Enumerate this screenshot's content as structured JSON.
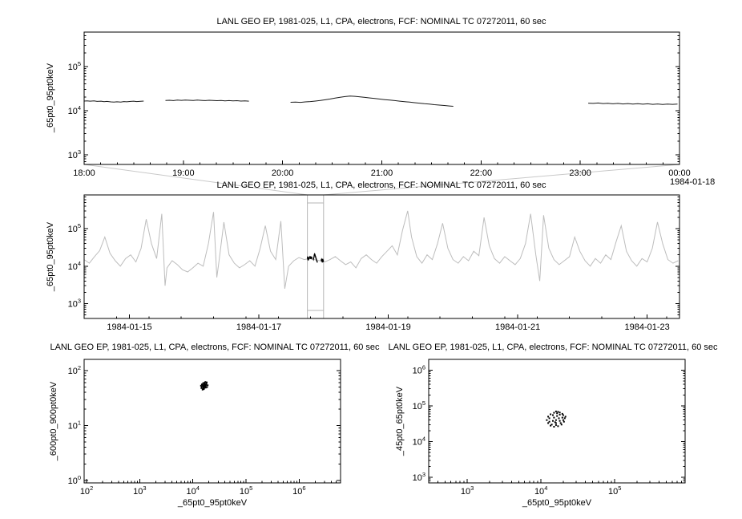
{
  "window": {
    "background": "#ffffff",
    "text_color": "#000000"
  },
  "chart_data": [
    {
      "id": "zoom",
      "type": "line",
      "title": "LANL GEO EP, 1981-025, L1, CPA, electrons, FCF: NOMINAL TC 07272011, 60 sec",
      "ylabel": "_65pt0_95pt0keV",
      "xlabel": "",
      "line_color": "#1a1a1a",
      "x_axis": {
        "lim": [
          18,
          24
        ],
        "log": false,
        "minor_step": 0.1666667,
        "date_label": "1984-01-18",
        "ticks": [
          {
            "v": 18,
            "label": "18:00"
          },
          {
            "v": 19,
            "label": "19:00"
          },
          {
            "v": 20,
            "label": "20:00"
          },
          {
            "v": 21,
            "label": "21:00"
          },
          {
            "v": 22,
            "label": "22:00"
          },
          {
            "v": 23,
            "label": "23:00"
          },
          {
            "v": 24,
            "label": "00:00"
          }
        ]
      },
      "y_axis": {
        "lim": [
          600,
          600000
        ],
        "log": true
      },
      "segments": [
        [
          [
            18.0,
            16400
          ],
          [
            18.03,
            16600
          ],
          [
            18.06,
            16300
          ],
          [
            18.1,
            16500
          ],
          [
            18.13,
            16100
          ],
          [
            18.17,
            16300
          ],
          [
            18.2,
            15900
          ],
          [
            18.23,
            16100
          ],
          [
            18.27,
            15700
          ],
          [
            18.3,
            15500
          ],
          [
            18.33,
            15800
          ],
          [
            18.37,
            15600
          ],
          [
            18.4,
            16000
          ],
          [
            18.43,
            15800
          ],
          [
            18.47,
            16100
          ],
          [
            18.5,
            16300
          ],
          [
            18.53,
            16000
          ],
          [
            18.57,
            16200
          ],
          [
            18.6,
            16400
          ]
        ],
        [
          [
            18.82,
            16900
          ],
          [
            18.86,
            17100
          ],
          [
            18.9,
            16800
          ],
          [
            18.94,
            17200
          ],
          [
            18.98,
            17000
          ],
          [
            19.02,
            17300
          ],
          [
            19.06,
            17100
          ],
          [
            19.1,
            16900
          ],
          [
            19.14,
            17200
          ],
          [
            19.18,
            17000
          ],
          [
            19.22,
            16800
          ],
          [
            19.26,
            17100
          ],
          [
            19.3,
            16900
          ],
          [
            19.34,
            16700
          ],
          [
            19.38,
            16900
          ],
          [
            19.42,
            16600
          ],
          [
            19.46,
            16800
          ],
          [
            19.5,
            16500
          ],
          [
            19.54,
            16700
          ],
          [
            19.58,
            16400
          ],
          [
            19.62,
            16600
          ],
          [
            19.66,
            16300
          ]
        ],
        [
          [
            20.08,
            15400
          ],
          [
            20.13,
            15600
          ],
          [
            20.18,
            15300
          ],
          [
            20.23,
            15700
          ],
          [
            20.28,
            16000
          ],
          [
            20.33,
            16400
          ],
          [
            20.38,
            16900
          ],
          [
            20.43,
            17500
          ],
          [
            20.48,
            18300
          ],
          [
            20.53,
            19200
          ],
          [
            20.58,
            20000
          ],
          [
            20.63,
            20700
          ],
          [
            20.68,
            21200
          ],
          [
            20.73,
            21000
          ],
          [
            20.78,
            20500
          ],
          [
            20.83,
            19900
          ],
          [
            20.88,
            19300
          ],
          [
            20.93,
            18700
          ],
          [
            20.98,
            18200
          ],
          [
            21.03,
            17700
          ],
          [
            21.08,
            17200
          ],
          [
            21.13,
            16800
          ],
          [
            21.18,
            16300
          ],
          [
            21.23,
            15900
          ],
          [
            21.28,
            15500
          ],
          [
            21.33,
            15100
          ],
          [
            21.38,
            14700
          ],
          [
            21.43,
            14300
          ],
          [
            21.48,
            14000
          ],
          [
            21.53,
            13600
          ],
          [
            21.58,
            13300
          ],
          [
            21.63,
            13000
          ],
          [
            21.68,
            12700
          ],
          [
            21.72,
            12500
          ]
        ],
        [
          [
            23.08,
            14700
          ],
          [
            23.13,
            14500
          ],
          [
            23.18,
            14800
          ],
          [
            23.23,
            14400
          ],
          [
            23.28,
            14600
          ],
          [
            23.33,
            14200
          ],
          [
            23.38,
            14500
          ],
          [
            23.43,
            14100
          ],
          [
            23.48,
            14400
          ],
          [
            23.53,
            14000
          ],
          [
            23.58,
            14300
          ],
          [
            23.63,
            13900
          ],
          [
            23.68,
            14200
          ],
          [
            23.73,
            13800
          ],
          [
            23.78,
            14100
          ],
          [
            23.83,
            13700
          ],
          [
            23.88,
            14000
          ],
          [
            23.93,
            13800
          ],
          [
            23.98,
            14000
          ]
        ]
      ]
    },
    {
      "id": "context",
      "type": "line",
      "title": "LANL GEO EP, 1981-025, L1, CPA, electrons, FCF: NOMINAL TC 07272011, 60 sec",
      "ylabel": "_65pt0_95pt0keV",
      "xlabel": "",
      "line_color": "#bdbdbd",
      "overlay_of": "zoom",
      "highlight": {
        "x0": 17.75,
        "x1": 18.0
      },
      "x_axis": {
        "lim": [
          14.3,
          23.5
        ],
        "log": false,
        "minor_step": 0.5,
        "ticks": [
          {
            "v": 15,
            "label": "1984-01-15"
          },
          {
            "v": 17,
            "label": "1984-01-17"
          },
          {
            "v": 19,
            "label": "1984-01-19"
          },
          {
            "v": 21,
            "label": "1984-01-21"
          },
          {
            "v": 23,
            "label": "1984-01-23"
          }
        ]
      },
      "y_axis": {
        "lim": [
          400,
          800000
        ],
        "log": true
      },
      "series": [
        [
          14.3,
          15000
        ],
        [
          14.38,
          12000
        ],
        [
          14.46,
          18000
        ],
        [
          14.54,
          26000
        ],
        [
          14.62,
          60000
        ],
        [
          14.7,
          22000
        ],
        [
          14.78,
          14000
        ],
        [
          14.86,
          10000
        ],
        [
          14.94,
          16000
        ],
        [
          15.02,
          20000
        ],
        [
          15.1,
          13000
        ],
        [
          15.18,
          30000
        ],
        [
          15.26,
          180000
        ],
        [
          15.34,
          40000
        ],
        [
          15.42,
          16000
        ],
        [
          15.5,
          250000
        ],
        [
          15.55,
          3000
        ],
        [
          15.58,
          9000
        ],
        [
          15.66,
          14000
        ],
        [
          15.74,
          11000
        ],
        [
          15.82,
          8000
        ],
        [
          15.9,
          7000
        ],
        [
          15.98,
          9000
        ],
        [
          16.06,
          12000
        ],
        [
          16.14,
          10000
        ],
        [
          16.22,
          40000
        ],
        [
          16.3,
          280000
        ],
        [
          16.35,
          5000
        ],
        [
          16.38,
          12000
        ],
        [
          16.46,
          150000
        ],
        [
          16.54,
          20000
        ],
        [
          16.62,
          12000
        ],
        [
          16.7,
          9000
        ],
        [
          16.78,
          11000
        ],
        [
          16.86,
          14000
        ],
        [
          16.94,
          10000
        ],
        [
          17.02,
          30000
        ],
        [
          17.1,
          120000
        ],
        [
          17.18,
          25000
        ],
        [
          17.26,
          15000
        ],
        [
          17.34,
          160000
        ],
        [
          17.4,
          2500
        ],
        [
          17.46,
          10000
        ],
        [
          17.54,
          14000
        ],
        [
          17.62,
          17000
        ],
        [
          17.7,
          15000
        ],
        [
          17.78,
          16000
        ],
        [
          17.86,
          15000
        ],
        [
          17.94,
          14000
        ],
        [
          18.02,
          13000
        ],
        [
          18.1,
          15000
        ],
        [
          18.18,
          18000
        ],
        [
          18.26,
          14000
        ],
        [
          18.34,
          11000
        ],
        [
          18.42,
          13000
        ],
        [
          18.5,
          9000
        ],
        [
          18.58,
          16000
        ],
        [
          18.66,
          20000
        ],
        [
          18.74,
          15000
        ],
        [
          18.82,
          12000
        ],
        [
          18.9,
          18000
        ],
        [
          18.98,
          25000
        ],
        [
          19.06,
          35000
        ],
        [
          19.14,
          20000
        ],
        [
          19.22,
          90000
        ],
        [
          19.3,
          300000
        ],
        [
          19.36,
          60000
        ],
        [
          19.44,
          18000
        ],
        [
          19.52,
          12000
        ],
        [
          19.6,
          20000
        ],
        [
          19.68,
          15000
        ],
        [
          19.76,
          40000
        ],
        [
          19.84,
          140000
        ],
        [
          19.92,
          30000
        ],
        [
          20.0,
          15000
        ],
        [
          20.08,
          12000
        ],
        [
          20.16,
          18000
        ],
        [
          20.24,
          14000
        ],
        [
          20.32,
          25000
        ],
        [
          20.4,
          19000
        ],
        [
          20.48,
          200000
        ],
        [
          20.56,
          35000
        ],
        [
          20.64,
          16000
        ],
        [
          20.72,
          12000
        ],
        [
          20.8,
          18000
        ],
        [
          20.88,
          14000
        ],
        [
          20.96,
          11000
        ],
        [
          21.04,
          16000
        ],
        [
          21.12,
          40000
        ],
        [
          21.2,
          250000
        ],
        [
          21.28,
          20000
        ],
        [
          21.34,
          4000
        ],
        [
          21.4,
          230000
        ],
        [
          21.48,
          30000
        ],
        [
          21.56,
          15000
        ],
        [
          21.64,
          11000
        ],
        [
          21.72,
          14000
        ],
        [
          21.8,
          18000
        ],
        [
          21.88,
          60000
        ],
        [
          21.96,
          25000
        ],
        [
          22.04,
          14000
        ],
        [
          22.12,
          10000
        ],
        [
          22.2,
          16000
        ],
        [
          22.28,
          12000
        ],
        [
          22.36,
          20000
        ],
        [
          22.44,
          15000
        ],
        [
          22.52,
          45000
        ],
        [
          22.6,
          120000
        ],
        [
          22.68,
          25000
        ],
        [
          22.76,
          14000
        ],
        [
          22.84,
          10000
        ],
        [
          22.92,
          16000
        ],
        [
          23.0,
          13000
        ],
        [
          23.08,
          30000
        ],
        [
          23.16,
          150000
        ],
        [
          23.24,
          40000
        ],
        [
          23.32,
          15000
        ],
        [
          23.4,
          12000
        ],
        [
          23.48,
          14000
        ]
      ]
    },
    {
      "id": "scatter-left",
      "type": "scatter",
      "title": "LANL GEO EP, 1981-025, L1, CPA, electrons, FCF: NOMINAL TC 07272011, 60 sec",
      "ylabel": "_600pt0_900pt0keV",
      "xlabel": "_65pt0_95pt0keV",
      "point_color": "#000000",
      "x_axis": {
        "lim": [
          90,
          6000000
        ],
        "log": true
      },
      "y_axis": {
        "lim": [
          0.9,
          160
        ],
        "log": true
      },
      "points": [
        [
          15000,
          52
        ],
        [
          16000,
          55
        ],
        [
          17000,
          50
        ],
        [
          14500,
          48
        ],
        [
          18000,
          58
        ],
        [
          16500,
          60
        ],
        [
          15500,
          47
        ],
        [
          17500,
          53
        ],
        [
          16200,
          51
        ],
        [
          14800,
          56
        ],
        [
          19000,
          54
        ],
        [
          15800,
          49
        ],
        [
          16800,
          57
        ],
        [
          17200,
          62
        ],
        [
          15200,
          45
        ],
        [
          16400,
          52
        ],
        [
          18500,
          50
        ],
        [
          14200,
          53
        ],
        [
          15600,
          59
        ],
        [
          17800,
          55
        ],
        [
          16100,
          46
        ],
        [
          16900,
          51
        ],
        [
          15400,
          54
        ],
        [
          17400,
          49
        ],
        [
          16600,
          56
        ],
        [
          15900,
          52
        ],
        [
          18200,
          61
        ],
        [
          14600,
          50
        ],
        [
          16300,
          48
        ],
        [
          17100,
          57
        ],
        [
          15700,
          53
        ],
        [
          16700,
          55
        ]
      ]
    },
    {
      "id": "scatter-right",
      "type": "scatter",
      "title": "LANL GEO EP, 1981-025, L1, CPA, electrons, FCF: NOMINAL TC 07272011, 60 sec",
      "ylabel": "_45pt0_65pt0keV",
      "xlabel": "_65pt0_95pt0keV",
      "point_color": "#000000",
      "x_axis": {
        "lim": [
          300,
          900000
        ],
        "log": true
      },
      "y_axis": {
        "lim": [
          700,
          2000000
        ],
        "log": true
      },
      "points": [
        [
          16000,
          70000
        ],
        [
          18000,
          65000
        ],
        [
          20000,
          55000
        ],
        [
          21000,
          45000
        ],
        [
          20500,
          36000
        ],
        [
          19000,
          30000
        ],
        [
          17000,
          27000
        ],
        [
          15000,
          26000
        ],
        [
          13500,
          28000
        ],
        [
          12500,
          33000
        ],
        [
          12000,
          40000
        ],
        [
          12500,
          50000
        ],
        [
          13500,
          58000
        ],
        [
          15000,
          64000
        ],
        [
          17000,
          68000
        ],
        [
          19500,
          60000
        ],
        [
          21500,
          50000
        ],
        [
          20000,
          40000
        ],
        [
          18500,
          33000
        ],
        [
          16000,
          29000
        ],
        [
          14000,
          30000
        ],
        [
          13000,
          36000
        ],
        [
          13000,
          45000
        ],
        [
          14500,
          55000
        ],
        [
          16500,
          62000
        ],
        [
          18000,
          57000
        ],
        [
          19500,
          47000
        ],
        [
          18000,
          38000
        ],
        [
          16000,
          33000
        ],
        [
          14500,
          38000
        ],
        [
          15000,
          47000
        ],
        [
          16500,
          52000
        ],
        [
          17500,
          45000
        ],
        [
          16000,
          40000
        ],
        [
          15500,
          35000
        ]
      ]
    }
  ]
}
